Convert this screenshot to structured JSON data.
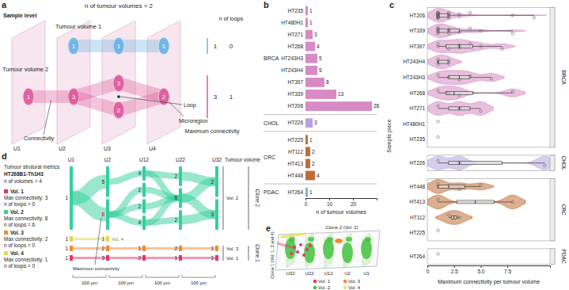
{
  "panel_a": {
    "label": "a",
    "title": "n of tumour volumes = 2",
    "sample_label": "Sample level",
    "planes": [
      "U1",
      "U2",
      "U3",
      "U4"
    ],
    "volumes": [
      {
        "name": "Tumour volume 1",
        "color": "#6cb3e3",
        "regions": [
          [],
          [
            "1"
          ],
          [
            "1"
          ],
          [
            "1"
          ]
        ],
        "max_connectivity": 1,
        "loops": 0
      },
      {
        "name": "Tumour volume 2",
        "color": "#de5a9c",
        "regions": [
          [
            "1"
          ],
          [
            "3"
          ],
          [
            "3",
            "2"
          ],
          [
            "2"
          ]
        ],
        "max_connectivity": 3,
        "loops": 1
      }
    ],
    "loops_header": "n of loops",
    "max_header": "Maximum connectivity",
    "connectivity_label": "Connectivity",
    "loop_label": "Loop",
    "microregion_label": "Microregion"
  },
  "chart_data": [
    {
      "type": "bar",
      "label": "b",
      "orientation": "horizontal",
      "data_labels": true,
      "categories": [
        "HT235",
        "HT480H1",
        "HT271",
        "HT268",
        "HT243H3",
        "HT243H4",
        "HT397",
        "HT339",
        "HT206",
        "HT226",
        "HT225",
        "HT112",
        "HT413",
        "HT448",
        "HT264"
      ],
      "values": [
        1,
        1,
        3,
        4,
        5,
        5,
        8,
        13,
        28,
        3,
        1,
        2,
        2,
        4,
        1
      ],
      "groups": [
        {
          "name": "BRCA",
          "color": "#d78ac3",
          "n": 9
        },
        {
          "name": "CHOL",
          "color": "#b5a4df",
          "n": 1
        },
        {
          "name": "CRC",
          "color": "#bf6d37",
          "n": 4
        },
        {
          "name": "PDAC",
          "color": "#7db2de",
          "n": 1
        }
      ],
      "xlabel": "n of tumour volumes",
      "xlim": [
        0,
        30
      ],
      "xticks": [
        0,
        10,
        20
      ]
    },
    {
      "type": "violin",
      "label": "c",
      "orientation": "horizontal",
      "categories": [
        "HT206",
        "HT339",
        "HT397",
        "HT243H4",
        "HT243H3",
        "HT268",
        "HT271",
        "HT480H1",
        "HT235",
        "HT226",
        "HT448",
        "HT413",
        "HT112",
        "HT225",
        "HT264"
      ],
      "values": [
        [
          1,
          1,
          1,
          1,
          1,
          1,
          1,
          1,
          1,
          1,
          1,
          1,
          1,
          1,
          1,
          1,
          1,
          1,
          2,
          2,
          2,
          2,
          2,
          3,
          3,
          4,
          8,
          10
        ],
        [
          1,
          1,
          1,
          1,
          1,
          1,
          2,
          2,
          2,
          3,
          4,
          5,
          8
        ],
        [
          1,
          1,
          2,
          3,
          3,
          4,
          5,
          7
        ],
        [
          1,
          1,
          1,
          2,
          2
        ],
        [
          1,
          2,
          3,
          4,
          6
        ],
        [
          1,
          2,
          3,
          8
        ],
        [
          1,
          3,
          5
        ],
        [
          1
        ],
        [
          1
        ],
        [
          1,
          3,
          11
        ],
        [
          1,
          1,
          3,
          5
        ],
        [
          1,
          8
        ],
        [
          2,
          3
        ],
        [
          1
        ],
        [
          1
        ]
      ],
      "groups": [
        {
          "name": "BRCA",
          "color": "#d78ac3",
          "n": 9
        },
        {
          "name": "CHOL",
          "color": "#b5a4df",
          "n": 1
        },
        {
          "name": "CRC",
          "color": "#bf6d37",
          "n": 4
        },
        {
          "name": "PDAC",
          "color": "#7db2de",
          "n": 1
        }
      ],
      "xlabel": "Maximum connectivity per tumour volume",
      "ylabel": "Sample piece",
      "xlim": [
        0,
        11.5
      ],
      "xticks": [
        0,
        2.5,
        {
          "value": 5,
          "label": "5.0"
        },
        7.5
      ]
    }
  ],
  "panel_d": {
    "label": "d",
    "heading": "Tumour strutural metrics",
    "sample": "HT268B1-Th1H3",
    "n_volumes": "n of volumes = 4",
    "volumes": [
      {
        "name": "Vol. 1",
        "color": "#e2356c",
        "max": "Max connectivity: 3",
        "loops": "n of loops = 0"
      },
      {
        "name": "Vol. 2",
        "color": "#33d09b",
        "max": "Max connectivity: 8",
        "loops": "n of loops = 6"
      },
      {
        "name": "Vol. 3",
        "color": "#f28a2e",
        "max": "Max connectivity: 2",
        "loops": "n of loops = 0"
      },
      {
        "name": "Vol. 4",
        "color": "#e0d84f",
        "max": "Max connectivity: 1",
        "loops": "n of loops = 0"
      }
    ],
    "columns": [
      {
        "name": "U1",
        "nodes": [
          {
            "vol": 2,
            "label": "1"
          },
          {
            "vol": 4,
            "label": "1"
          },
          {
            "vol": 3,
            "label": "1"
          },
          {
            "vol": 1,
            "label": "1"
          }
        ]
      },
      {
        "name": "U2",
        "nodes": [
          {
            "vol": 2,
            "label": "5"
          },
          {
            "vol": 2,
            "label": "8"
          },
          {
            "vol": 4,
            "label": "1"
          },
          {
            "vol": 1,
            "label": "3"
          },
          {
            "vol": 3,
            "label": "2"
          }
        ]
      },
      {
        "name": "U12",
        "nodes": [
          {
            "vol": 2,
            "label": "4"
          },
          {
            "vol": 2,
            "label": "2"
          },
          {
            "vol": 2,
            "label": "2"
          },
          {
            "vol": 2,
            "label": "4"
          },
          {
            "vol": 3,
            "label": "1"
          },
          {
            "vol": 1,
            "label": "2"
          }
        ]
      },
      {
        "name": "U22",
        "nodes": [
          {
            "vol": 2,
            "label": "2"
          },
          {
            "vol": 2,
            "label": "6"
          },
          {
            "vol": 2,
            "label": "2"
          },
          {
            "vol": 3,
            "label": "2"
          },
          {
            "vol": 1,
            "label": "1"
          }
        ]
      },
      {
        "name": "U32",
        "nodes": [
          {
            "vol": 2,
            "label": "2"
          },
          {
            "vol": 2,
            "label": "3"
          },
          {
            "vol": 3,
            "label": "1"
          },
          {
            "vol": 1,
            "label": "1"
          }
        ]
      }
    ],
    "links": [
      [
        0,
        0,
        0
      ],
      [
        0,
        0,
        1
      ],
      [
        0,
        1,
        2
      ],
      [
        0,
        2,
        4
      ],
      [
        0,
        3,
        3
      ],
      [
        1,
        0,
        0
      ],
      [
        1,
        1,
        1
      ],
      [
        1,
        1,
        2
      ],
      [
        1,
        1,
        3
      ],
      [
        1,
        4,
        4
      ],
      [
        1,
        3,
        5
      ],
      [
        2,
        0,
        0
      ],
      [
        2,
        0,
        1
      ],
      [
        2,
        1,
        1
      ],
      [
        2,
        2,
        1
      ],
      [
        2,
        3,
        1
      ],
      [
        2,
        3,
        2
      ],
      [
        2,
        4,
        3
      ],
      [
        2,
        5,
        4
      ],
      [
        3,
        0,
        0
      ],
      [
        3,
        1,
        0
      ],
      [
        3,
        1,
        1
      ],
      [
        3,
        2,
        1
      ],
      [
        3,
        3,
        2
      ],
      [
        3,
        4,
        3
      ]
    ],
    "max_node": [
      1,
      1
    ],
    "max_label": "Maximum connectivity",
    "vol4_label": "Vol. 4",
    "right_header": "Tumour volume",
    "groups": [
      {
        "vols": [
          2
        ],
        "clone": "Clone 2"
      },
      {
        "vols": [
          3,
          1
        ],
        "clone": "Clone 1"
      }
    ],
    "spacing": [
      "100 µm",
      "100 µm",
      "100 µm",
      "100 µm"
    ]
  },
  "panel_e": {
    "label": "e",
    "clone2_label": "Clone 2 (Vol. 2)",
    "clone1_label": "Clone 1 (Vol. 1, 3 and 4)",
    "planes": [
      "U32",
      "U22",
      "U12",
      "U2",
      "U1"
    ],
    "legend": [
      {
        "name": "Vol. 1",
        "color": "#e8336f"
      },
      {
        "name": "Vol. 3",
        "color": "#f08a2a"
      },
      {
        "name": "Vol. 2",
        "color": "#45c23f"
      },
      {
        "name": "Vol. 4",
        "color": "#e9e46a"
      }
    ]
  }
}
